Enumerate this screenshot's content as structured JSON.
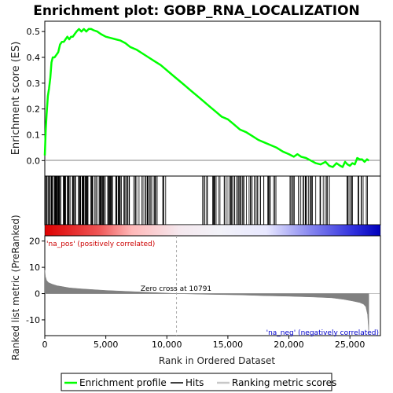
{
  "chart_data": [
    {
      "type": "line",
      "title": "Enrichment plot: GOBP_RNA_LOCALIZATION",
      "ylabel": "Enrichment score (ES)",
      "xlim": [
        0,
        27500
      ],
      "ylim": [
        -0.06,
        0.54
      ],
      "yticks": [
        "0.0",
        "0.1",
        "0.2",
        "0.3",
        "0.4",
        "0.5"
      ],
      "ytick_values": [
        0.0,
        0.1,
        0.2,
        0.3,
        0.4,
        0.5
      ],
      "series": [
        {
          "name": "Enrichment profile",
          "color": "#00ff00",
          "x": [
            0,
            80,
            150,
            250,
            350,
            450,
            550,
            650,
            800,
            950,
            1100,
            1250,
            1400,
            1550,
            1700,
            1850,
            2000,
            2150,
            2300,
            2450,
            2600,
            2800,
            3000,
            3200,
            3400,
            3600,
            3800,
            4000,
            4300,
            4600,
            5000,
            5400,
            5800,
            6200,
            6600,
            7000,
            7500,
            8000,
            8500,
            9000,
            9500,
            10000,
            10500,
            11000,
            11500,
            12000,
            12500,
            13000,
            13500,
            14000,
            14500,
            15000,
            15500,
            16000,
            16500,
            17000,
            17500,
            18000,
            18500,
            19000,
            19500,
            20000,
            20400,
            20700,
            21000,
            21400,
            21800,
            22200,
            22600,
            23000,
            23300,
            23600,
            23900,
            24200,
            24400,
            24600,
            24800,
            25000,
            25200,
            25400,
            25600,
            25800,
            26000,
            26200,
            26400,
            26550
          ],
          "y": [
            0.02,
            0.12,
            0.18,
            0.25,
            0.28,
            0.32,
            0.38,
            0.4,
            0.4,
            0.41,
            0.42,
            0.45,
            0.46,
            0.46,
            0.47,
            0.48,
            0.47,
            0.48,
            0.48,
            0.49,
            0.5,
            0.51,
            0.5,
            0.51,
            0.5,
            0.51,
            0.51,
            0.505,
            0.5,
            0.49,
            0.48,
            0.475,
            0.47,
            0.465,
            0.455,
            0.44,
            0.43,
            0.415,
            0.4,
            0.385,
            0.37,
            0.35,
            0.33,
            0.31,
            0.29,
            0.27,
            0.25,
            0.23,
            0.21,
            0.19,
            0.17,
            0.16,
            0.14,
            0.12,
            0.11,
            0.095,
            0.08,
            0.07,
            0.06,
            0.05,
            0.035,
            0.025,
            0.015,
            0.025,
            0.015,
            0.01,
            0.0,
            -0.01,
            -0.015,
            -0.005,
            -0.02,
            -0.025,
            -0.01,
            -0.02,
            -0.025,
            -0.005,
            -0.015,
            -0.02,
            -0.01,
            -0.015,
            0.01,
            0.005,
            0.005,
            -0.005,
            0.005,
            0.0
          ]
        }
      ]
    },
    {
      "type": "hits",
      "series_name": "Hits",
      "xlim": [
        0,
        27500
      ],
      "dense_regions": [
        [
          0,
          7000
        ],
        [
          7200,
          10000
        ],
        [
          12800,
          19000
        ],
        [
          20000,
          23500
        ],
        [
          24500,
          26500
        ]
      ],
      "count": 245,
      "color": "#000000"
    },
    {
      "type": "area",
      "ylabel": "Ranked list metric (PreRanked)",
      "xlabel": "Rank in Ordered Dataset",
      "xlim": [
        0,
        27500
      ],
      "ylim": [
        -16,
        22
      ],
      "yticks": [
        "20",
        "10",
        "0",
        "-10"
      ],
      "ytick_values": [
        20,
        10,
        0,
        -10
      ],
      "xticks": [
        "0",
        "5,000",
        "10,000",
        "15,000",
        "20,000",
        "25,000"
      ],
      "xtick_values": [
        0,
        5000,
        10000,
        15000,
        20000,
        25000
      ],
      "series": [
        {
          "name": "Ranking metric scores",
          "color": "#808080",
          "x": [
            0,
            50,
            150,
            300,
            600,
            1000,
            1500,
            2000,
            3000,
            4000,
            5000,
            7000,
            9000,
            10791,
            13000,
            16000,
            18000,
            20000,
            22000,
            23500,
            24500,
            25200,
            25800,
            26100,
            26300,
            26450,
            26550
          ],
          "y": [
            9.0,
            6.5,
            5.0,
            4.2,
            3.6,
            3.0,
            2.6,
            2.2,
            1.8,
            1.5,
            1.2,
            0.8,
            0.4,
            0.0,
            -0.25,
            -0.5,
            -0.8,
            -1.0,
            -1.3,
            -1.6,
            -2.2,
            -2.8,
            -3.4,
            -4.0,
            -5.0,
            -8.0,
            -15.0
          ]
        }
      ],
      "annotations": {
        "zero_cross": "Zero cross at 10791",
        "zero_cross_x": 10791,
        "pos_label": "'na_pos' (positively correlated)",
        "neg_label": "'na_neg' (negatively correlated)"
      }
    }
  ],
  "legend": {
    "items": [
      {
        "label": "Enrichment profile",
        "color": "#00ff00"
      },
      {
        "label": "Hits",
        "color": "#000000"
      },
      {
        "label": "Ranking metric scores",
        "color": "#c8c8c8"
      }
    ]
  },
  "colors": {
    "pos": "#cc0000",
    "neg": "#0000cc",
    "neutral": "#f2f2f2",
    "pos_text": "#cc0000",
    "neg_text": "#0000cc"
  }
}
